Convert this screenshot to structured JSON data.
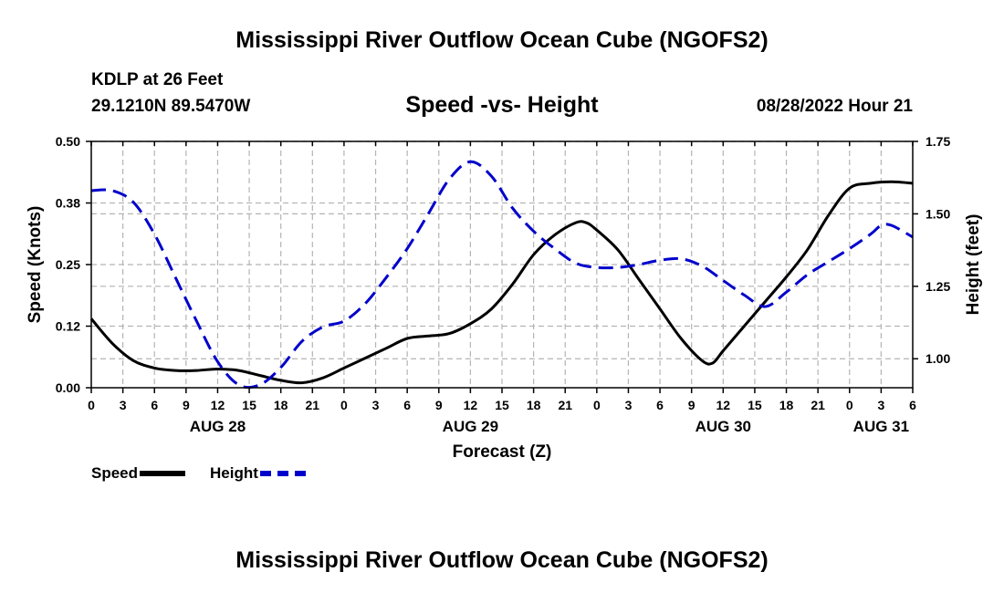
{
  "header": {
    "title": "Mississippi River Outflow Ocean Cube (NGOFS2)",
    "station": "KDLP at 26 Feet",
    "coordinates": "29.1210N  89.5470W",
    "subtitle": "Speed -vs- Height",
    "datetime": "08/28/2022 Hour 21"
  },
  "footer": {
    "title": "Mississippi River Outflow Ocean Cube (NGOFS2)"
  },
  "legend": {
    "speed_label": "Speed",
    "height_label": "Height"
  },
  "colors": {
    "speed": "#000000",
    "height": "#0000cc",
    "grid": "#b4b4b4"
  },
  "chart_data": {
    "type": "line",
    "xlabel": "Forecast (Z)",
    "ylabel_left": "Speed (Knots)",
    "ylabel_right": "Height (feet)",
    "x_unit": "hours since Aug 28 00Z",
    "xlim": [
      0,
      78
    ],
    "ylim_left": [
      0,
      0.5
    ],
    "ylim_right": [
      0.9,
      1.75
    ],
    "x_ticks": [
      0,
      3,
      6,
      9,
      12,
      15,
      18,
      21,
      24,
      27,
      30,
      33,
      36,
      39,
      42,
      45,
      48,
      51,
      54,
      57,
      60,
      63,
      66,
      69,
      72,
      75,
      78
    ],
    "x_tick_labels": [
      "0",
      "3",
      "6",
      "9",
      "12",
      "15",
      "18",
      "21",
      "0",
      "3",
      "6",
      "9",
      "12",
      "15",
      "18",
      "21",
      "0",
      "3",
      "6",
      "9",
      "12",
      "15",
      "18",
      "21",
      "0",
      "3",
      "6"
    ],
    "day_labels": [
      {
        "x": 12,
        "text": "AUG 28"
      },
      {
        "x": 36,
        "text": "AUG 29"
      },
      {
        "x": 60,
        "text": "AUG 30"
      },
      {
        "x": 75,
        "text": "AUG 31"
      }
    ],
    "yticks_left": [
      0,
      0.125,
      0.25,
      0.375,
      0.5
    ],
    "yticks_left_labels": [
      "0.00",
      "0.12",
      "0.25",
      "0.38",
      "0.50"
    ],
    "yticks_right": [
      1.0,
      1.25,
      1.5,
      1.75
    ],
    "yticks_right_labels": [
      "1.00",
      "1.25",
      "1.50",
      "1.75"
    ],
    "grid": true,
    "series": [
      {
        "name": "Speed",
        "axis": "left",
        "style": "solid",
        "x": [
          0,
          2,
          4,
          6,
          8,
          10,
          12,
          14,
          16,
          18,
          20,
          22,
          24,
          26,
          28,
          30,
          32,
          34,
          36,
          38,
          40,
          42,
          44,
          46,
          47,
          48,
          50,
          52,
          54,
          56,
          58,
          59,
          60,
          62,
          64,
          66,
          68,
          70,
          72,
          74,
          76,
          78
        ],
        "values": [
          0.14,
          0.09,
          0.055,
          0.04,
          0.035,
          0.035,
          0.038,
          0.035,
          0.025,
          0.015,
          0.01,
          0.02,
          0.04,
          0.06,
          0.08,
          0.1,
          0.105,
          0.11,
          0.13,
          0.16,
          0.21,
          0.27,
          0.31,
          0.335,
          0.335,
          0.32,
          0.28,
          0.22,
          0.16,
          0.1,
          0.055,
          0.05,
          0.075,
          0.125,
          0.175,
          0.225,
          0.28,
          0.35,
          0.405,
          0.415,
          0.418,
          0.415
        ]
      },
      {
        "name": "Height",
        "axis": "right",
        "style": "dashed",
        "x": [
          0,
          2,
          4,
          6,
          8,
          10,
          12,
          14,
          16,
          18,
          20,
          22,
          24,
          26,
          28,
          30,
          32,
          34,
          36,
          38,
          40,
          42,
          44,
          46,
          48,
          50,
          52,
          54,
          56,
          58,
          60,
          62,
          64,
          66,
          68,
          70,
          72,
          74,
          75,
          76,
          78
        ],
        "values": [
          1.58,
          1.58,
          1.54,
          1.43,
          1.28,
          1.13,
          0.99,
          0.91,
          0.91,
          0.97,
          1.06,
          1.11,
          1.13,
          1.19,
          1.28,
          1.38,
          1.5,
          1.62,
          1.68,
          1.63,
          1.52,
          1.44,
          1.38,
          1.33,
          1.315,
          1.315,
          1.325,
          1.34,
          1.345,
          1.32,
          1.27,
          1.22,
          1.18,
          1.23,
          1.29,
          1.335,
          1.38,
          1.43,
          1.46,
          1.46,
          1.42
        ]
      }
    ]
  }
}
